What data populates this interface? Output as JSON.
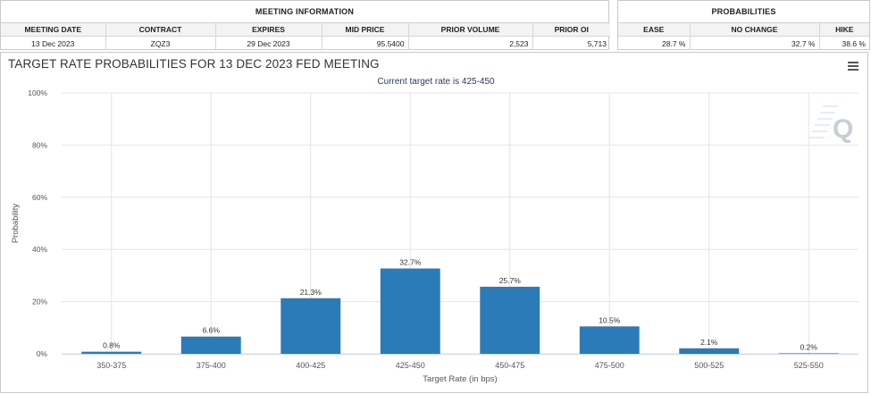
{
  "meeting_info": {
    "title": "MEETING INFORMATION",
    "headers": [
      "MEETING DATE",
      "CONTRACT",
      "EXPIRES",
      "MID PRICE",
      "PRIOR VOLUME",
      "PRIOR OI"
    ],
    "row": [
      "13 Dec 2023",
      "ZQZ3",
      "29 Dec 2023",
      "95.5400",
      "2,523",
      "5,713"
    ]
  },
  "probabilities": {
    "title": "PROBABILITIES",
    "headers": [
      "EASE",
      "NO CHANGE",
      "HIKE"
    ],
    "row": [
      "28.7 %",
      "32.7 %",
      "38.6 %"
    ]
  },
  "chart_title": "TARGET RATE PROBABILITIES FOR 13 DEC 2023 FED MEETING",
  "logo_letter": "Q",
  "colors": {
    "bar": "#2b7bb9",
    "grid": "#e4e4e4",
    "axis": "#ccd6eb"
  },
  "chart_data": {
    "type": "bar",
    "subtitle": "Current target rate is 425-450",
    "categories": [
      "350-375",
      "375-400",
      "400-425",
      "425-450",
      "450-475",
      "475-500",
      "500-525",
      "525-550"
    ],
    "values": [
      0.8,
      6.6,
      21.3,
      32.7,
      25.7,
      10.5,
      2.1,
      0.2
    ],
    "data_labels": [
      "0.8%",
      "6.6%",
      "21.3%",
      "32.7%",
      "25.7%",
      "10.5%",
      "2.1%",
      "0.2%"
    ],
    "xlabel": "Target Rate (in bps)",
    "ylabel": "Probability",
    "ylim": [
      0,
      100
    ],
    "yticks": [
      0,
      20,
      40,
      60,
      80,
      100
    ],
    "ytick_labels": [
      "0%",
      "20%",
      "40%",
      "60%",
      "80%",
      "100%"
    ],
    "grid": true,
    "legend": false
  }
}
